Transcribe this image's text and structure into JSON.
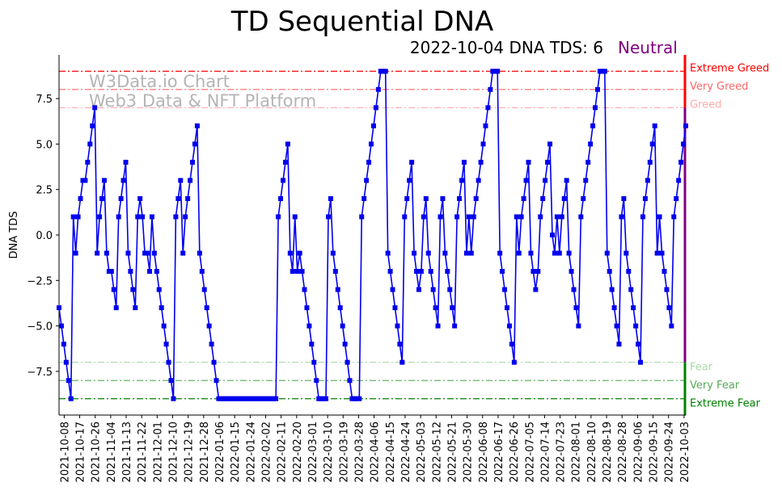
{
  "chart_data": {
    "type": "line",
    "title": "TD Sequential DNA",
    "subtitle": "2022-10-04 DNA TDS: 6",
    "sentiment": "Neutral",
    "ylabel": "DNA TDS",
    "xlabel": "",
    "ylim": [
      -9.9,
      9.9
    ],
    "yticks": [
      -7.5,
      -5.0,
      -2.5,
      0.0,
      2.5,
      5.0,
      7.5
    ],
    "ytick_labels": [
      "−7.5",
      "−5.0",
      "−2.5",
      "0.0",
      "2.5",
      "5.0",
      "7.5"
    ],
    "x_start": "2021-10-05",
    "x_end": "2022-10-04",
    "xtick_labels": [
      "2021-10-08",
      "2021-10-17",
      "2021-10-26",
      "2021-11-04",
      "2021-11-13",
      "2021-11-22",
      "2021-12-01",
      "2021-12-10",
      "2021-12-19",
      "2021-12-28",
      "2022-01-06",
      "2022-01-15",
      "2022-01-24",
      "2022-02-02",
      "2022-02-11",
      "2022-02-20",
      "2022-03-01",
      "2022-03-10",
      "2022-03-19",
      "2022-03-28",
      "2022-04-06",
      "2022-04-15",
      "2022-04-24",
      "2022-05-03",
      "2022-05-12",
      "2022-05-21",
      "2022-05-30",
      "2022-06-08",
      "2022-06-17",
      "2022-06-26",
      "2022-07-05",
      "2022-07-14",
      "2022-07-23",
      "2022-08-01",
      "2022-08-10",
      "2022-08-19",
      "2022-08-28",
      "2022-09-06",
      "2022-09-15",
      "2022-09-24",
      "2022-10-03"
    ],
    "series": [
      {
        "name": "DNA TDS",
        "color": "#0000ee",
        "values": [
          -4,
          -5,
          -6,
          -7,
          -8,
          -9,
          1,
          -1,
          1,
          2,
          3,
          3,
          4,
          5,
          6,
          7,
          -1,
          1,
          2,
          3,
          -1,
          -2,
          -2,
          -3,
          -4,
          1,
          2,
          3,
          4,
          -1,
          -2,
          -3,
          -4,
          1,
          2,
          1,
          -1,
          -1,
          -2,
          1,
          -1,
          -2,
          -3,
          -4,
          -5,
          -6,
          -7,
          -8,
          -9,
          1,
          2,
          3,
          -1,
          1,
          2,
          3,
          4,
          5,
          6,
          -1,
          -2,
          -3,
          -4,
          -5,
          -6,
          -7,
          -8,
          -9,
          -9,
          -9,
          -9,
          -9,
          -9,
          -9,
          -9,
          -9,
          -9,
          -9,
          -9,
          -9,
          -9,
          -9,
          -9,
          -9,
          -9,
          -9,
          -9,
          -9,
          -9,
          -9,
          -9,
          -9,
          1,
          2,
          3,
          4,
          5,
          -1,
          -2,
          1,
          -2,
          -1,
          -2,
          -3,
          -4,
          -5,
          -6,
          -7,
          -8,
          -9,
          -9,
          -9,
          -9,
          1,
          2,
          -1,
          -2,
          -3,
          -4,
          -5,
          -6,
          -7,
          -8,
          -9,
          -9,
          -9,
          -9,
          1,
          2,
          3,
          4,
          5,
          6,
          7,
          8,
          9,
          9,
          9,
          -1,
          -2,
          -3,
          -4,
          -5,
          -6,
          -7,
          1,
          2,
          3,
          4,
          -1,
          -2,
          -3,
          -2,
          1,
          2,
          -1,
          -2,
          -3,
          -4,
          -5,
          1,
          2,
          -1,
          -2,
          -3,
          -4,
          -5,
          1,
          2,
          3,
          4,
          -1,
          1,
          -1,
          1,
          2,
          3,
          4,
          5,
          6,
          7,
          8,
          9,
          9,
          9,
          -1,
          -2,
          -3,
          -4,
          -5,
          -6,
          -7,
          1,
          -1,
          1,
          2,
          3,
          4,
          -1,
          -2,
          -3,
          -2,
          1,
          2,
          3,
          4,
          5,
          0,
          -1,
          1,
          -1,
          1,
          2,
          3,
          -1,
          -2,
          -3,
          -4,
          -5,
          1,
          2,
          3,
          4,
          5,
          6,
          7,
          8,
          9,
          9,
          9,
          -1,
          -2,
          -3,
          -4,
          -5,
          -6,
          1,
          2,
          -1,
          -2,
          -3,
          -4,
          -5,
          -6,
          -7,
          1,
          2,
          3,
          4,
          5,
          6,
          -1,
          1,
          -1,
          -2,
          -3,
          -4,
          -5,
          1,
          2,
          3,
          4,
          5,
          6
        ]
      }
    ],
    "levels": [
      {
        "name": "Extreme Greed",
        "value": 9,
        "color": "#ff0000"
      },
      {
        "name": "Very Greed",
        "value": 8,
        "color": "#ff6666"
      },
      {
        "name": "Greed",
        "value": 7,
        "color": "#ffaaaa"
      },
      {
        "name": "Fear",
        "value": -7,
        "color": "#a8d8a8"
      },
      {
        "name": "Very Fear",
        "value": -8,
        "color": "#55aa55"
      },
      {
        "name": "Extreme Fear",
        "value": -9,
        "color": "#008000"
      }
    ],
    "watermark_line1": "W3Data.io Chart",
    "watermark_line2": "Web3 Data & NFT Platform",
    "gauge_colors": {
      "greed": "#ff0000",
      "neutral": "#800080",
      "fear": "#008000"
    }
  }
}
